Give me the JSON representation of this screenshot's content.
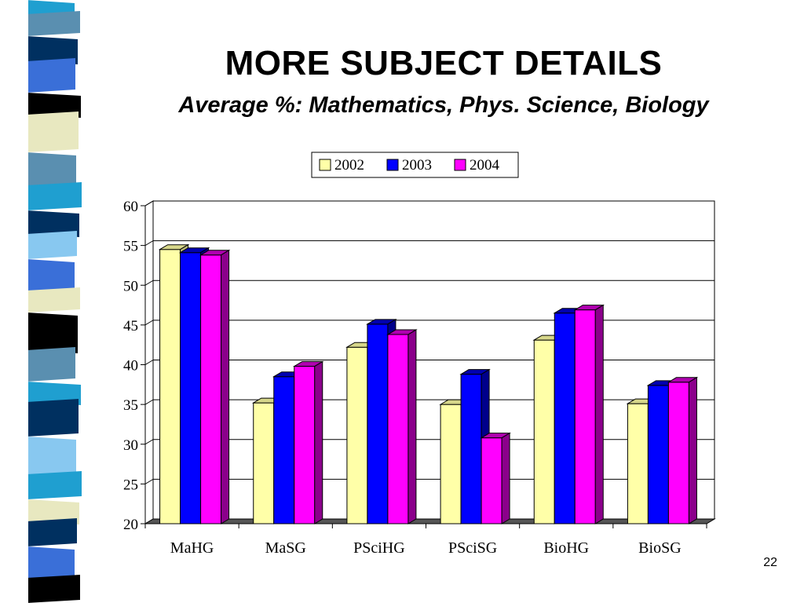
{
  "slide": {
    "title": "MORE SUBJECT DETAILS",
    "subtitle": "Average %: Mathematics, Phys. Science, Biology",
    "page_number": "22"
  },
  "colors": {
    "series_2002": "#ffffa8",
    "series_2003": "#0000ff",
    "series_2004": "#ff00ff",
    "gridline": "#000000",
    "floor": "#555555"
  },
  "chart_data": {
    "type": "bar",
    "style": "3d-clustered-column",
    "categories": [
      "MaHG",
      "MaSG",
      "PSciHG",
      "PSciSG",
      "BioHG",
      "BioSG"
    ],
    "series": [
      {
        "name": "2002",
        "values": [
          54.5,
          35.2,
          42.2,
          35.0,
          43.1,
          35.1
        ]
      },
      {
        "name": "2003",
        "values": [
          54.1,
          38.5,
          45.1,
          38.8,
          46.5,
          37.4
        ]
      },
      {
        "name": "2004",
        "values": [
          53.8,
          39.8,
          43.8,
          30.8,
          46.9,
          37.8
        ]
      }
    ],
    "ylim": [
      20,
      60
    ],
    "yticks": [
      "20",
      "25",
      "30",
      "35",
      "40",
      "45",
      "50",
      "55",
      "60"
    ],
    "grid": true,
    "legend_position": "top-center"
  }
}
